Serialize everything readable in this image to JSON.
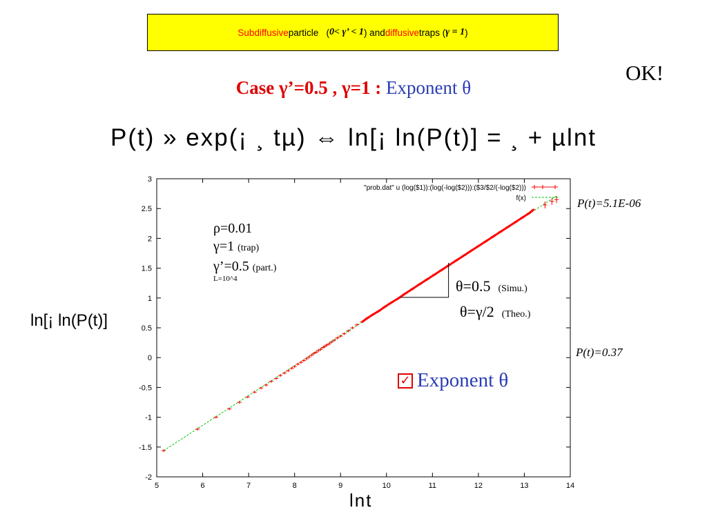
{
  "header": {
    "t1": "Subdiffusive",
    "t2": " particle",
    "t3": "( ",
    "t4": "0< γ’ < 1",
    "t5": " ) and ",
    "t6": "diffusive",
    "t7": "  traps  ( ",
    "t8": "γ = 1",
    "t9": " )"
  },
  "ok_text": "OK!",
  "case_line": {
    "red": "Case  γ’=0.5 , γ=1  : ",
    "blue": "Exponent θ"
  },
  "formula": "P(t) » exp(¡ ¸ tµ)  ⇔  ln[¡ ln(P(t)] = ¸ + µlnt",
  "y_axis_label": "ln[¡  ln(P(t)]",
  "x_axis_label": "lnt",
  "p_top": "P(t)=5.1E-06",
  "p_mid": "P(t)=0.37",
  "params": {
    "rho": "ρ=0.01",
    "gamma": "γ=1",
    "gamma_note": "(trap)",
    "gammap": "γ’=0.5",
    "gammap_note": "(part.)",
    "L": "L=10^4"
  },
  "theta_simu": {
    "main": "θ=0.5",
    "note": "(Simu.)"
  },
  "theta_theo": {
    "main": "θ=γ/2",
    "note": "(Theo.)"
  },
  "exponent_check": "Exponent θ",
  "colors": {
    "data": "#ff0000",
    "fit": "#00c800",
    "title_bg": "#ffff00",
    "accent_blue": "#2a3cb4"
  },
  "chart_data": {
    "type": "scatter",
    "xlim": [
      5,
      14
    ],
    "ylim": [
      -2,
      3
    ],
    "xticks": [
      "5",
      "6",
      "7",
      "8",
      "9",
      "10",
      "11",
      "12",
      "13",
      "14"
    ],
    "yticks": [
      "-2",
      "-1.5",
      "-1",
      "-0.5",
      "0",
      "0.5",
      "1",
      "1.5",
      "2",
      "2.5",
      "3"
    ],
    "legend": [
      "\"prob.dat\" u (log($1)):(log(-log($2))):($3/$2/(-log($2)))",
      "f(x)"
    ],
    "legend_position": "top-right",
    "series": [
      {
        "name": "\"prob.dat\" u (log($1)):(log(-log($2))):($3/$2/(-log($2)))",
        "type": "scatter",
        "x": [
          5.15,
          5.89,
          6.29,
          6.58,
          6.8,
          6.98,
          7.13,
          7.27,
          7.38,
          7.49,
          7.6,
          7.69,
          7.78,
          7.86,
          7.94,
          8.0,
          8.07,
          8.14,
          8.2,
          8.26,
          8.31,
          8.37,
          8.42,
          8.47,
          8.52,
          8.57,
          8.62,
          8.66,
          8.7,
          8.75,
          8.8,
          8.86,
          8.93,
          9.0,
          9.08,
          9.17,
          9.26,
          9.36,
          9.47,
          9.58,
          9.7,
          9.83,
          9.96,
          10.1,
          10.25,
          10.4,
          10.56,
          10.72,
          10.88,
          11.04,
          11.2,
          11.36,
          11.52,
          11.68,
          11.84,
          12.0,
          12.16,
          12.32,
          12.48,
          12.64,
          12.8,
          12.96,
          13.1,
          13.2,
          13.45,
          13.6,
          13.7
        ],
        "y": [
          -1.56,
          -1.2,
          -1.0,
          -0.86,
          -0.75,
          -0.66,
          -0.58,
          -0.51,
          -0.46,
          -0.4,
          -0.35,
          -0.3,
          -0.26,
          -0.22,
          -0.18,
          -0.15,
          -0.11,
          -0.08,
          -0.05,
          -0.02,
          0.01,
          0.04,
          0.07,
          0.09,
          0.12,
          0.14,
          0.17,
          0.19,
          0.21,
          0.23,
          0.26,
          0.29,
          0.33,
          0.36,
          0.4,
          0.45,
          0.5,
          0.55,
          0.6,
          0.66,
          0.72,
          0.78,
          0.85,
          0.92,
          0.99,
          1.07,
          1.15,
          1.23,
          1.31,
          1.39,
          1.47,
          1.55,
          1.63,
          1.71,
          1.79,
          1.87,
          1.95,
          2.03,
          2.11,
          2.19,
          2.27,
          2.35,
          2.42,
          2.48,
          2.56,
          2.62,
          2.65
        ]
      },
      {
        "name": "f(x)",
        "type": "line",
        "x": [
          5.15,
          13.7
        ],
        "y": [
          -1.56,
          2.71
        ]
      }
    ],
    "annotation_triangle": {
      "x": [
        10.3,
        11.35
      ],
      "y": [
        1.01,
        1.59
      ]
    }
  }
}
